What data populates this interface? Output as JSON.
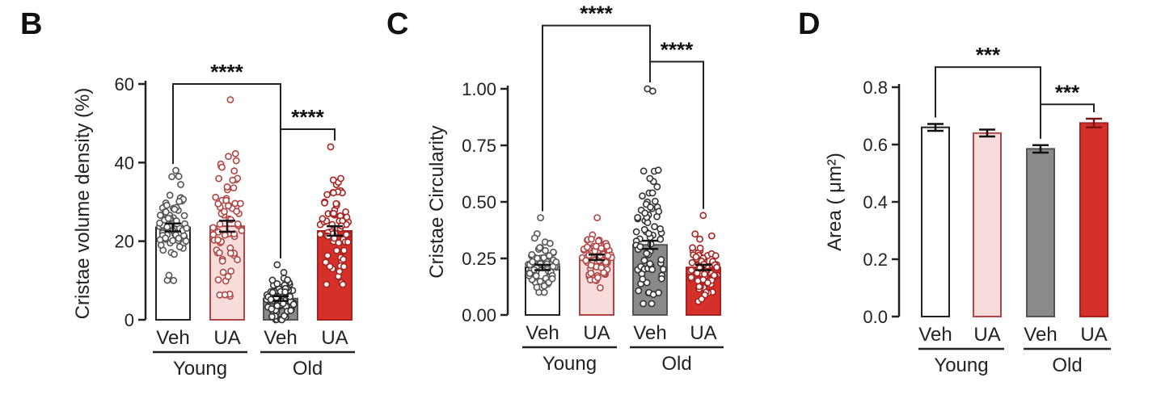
{
  "colors": {
    "young_veh": "#ffffff",
    "young_ua": "#f8dcdc",
    "old_veh": "#8a8a8a",
    "old_ua": "#d6302b",
    "bar_edge_young_ua": "#b34545",
    "bar_edge_old_ua": "#a82220",
    "axis": "#222222"
  },
  "chart_data": [
    {
      "panel": "B",
      "type": "bar",
      "ylabel": "Cristae volume density (%)",
      "ylim": [
        0,
        60
      ],
      "yticks": [
        0,
        20,
        40,
        60
      ],
      "ytick_labels": [
        "0",
        "20",
        "40",
        "60"
      ],
      "categories": [
        "Veh",
        "UA",
        "Veh",
        "UA"
      ],
      "groups": [
        {
          "label": "Young",
          "members": [
            0,
            1
          ]
        },
        {
          "label": "Old",
          "members": [
            2,
            3
          ]
        }
      ],
      "values": [
        23.5,
        23.8,
        5.4,
        22.6
      ],
      "errors": [
        1.0,
        1.4,
        0.6,
        1.2
      ],
      "scatter_points": true,
      "point_spread": [
        [
          10,
          38
        ],
        [
          6,
          56
        ],
        [
          0,
          14
        ],
        [
          9,
          44
        ]
      ],
      "significance": [
        {
          "from": 0,
          "to": 2,
          "label": "****",
          "level": 60
        },
        {
          "from": 2,
          "to": 3,
          "label": "****",
          "level": 48.5
        }
      ]
    },
    {
      "panel": "C",
      "type": "bar",
      "ylabel": "Cristae Circularity",
      "ylim": [
        0,
        1.0
      ],
      "yticks": [
        0,
        0.25,
        0.5,
        0.75,
        1.0
      ],
      "ytick_labels": [
        "0.00",
        "0.25",
        "0.50",
        "0.75",
        "1.00"
      ],
      "categories": [
        "Veh",
        "UA",
        "Veh",
        "UA"
      ],
      "groups": [
        {
          "label": "Young",
          "members": [
            0,
            1
          ]
        },
        {
          "label": "Old",
          "members": [
            2,
            3
          ]
        }
      ],
      "values": [
        0.21,
        0.255,
        0.31,
        0.21
      ],
      "errors": [
        0.012,
        0.012,
        0.018,
        0.012
      ],
      "scatter_points": true,
      "point_spread": [
        [
          0.1,
          0.43
        ],
        [
          0.12,
          0.43
        ],
        [
          0.05,
          1.0
        ],
        [
          0.06,
          0.44
        ]
      ],
      "significance": [
        {
          "from": 0,
          "to": 2,
          "label": "****",
          "level": 1.28
        },
        {
          "from": 2,
          "to": 3,
          "label": "****",
          "level": 1.12
        }
      ]
    },
    {
      "panel": "D",
      "type": "bar",
      "ylabel": "Area ( μm²)",
      "ylim": [
        0,
        0.8
      ],
      "yticks": [
        0,
        0.2,
        0.4,
        0.6,
        0.8
      ],
      "ytick_labels": [
        "0.0",
        "0.2",
        "0.4",
        "0.6",
        "0.8"
      ],
      "categories": [
        "Veh",
        "UA",
        "Veh",
        "UA"
      ],
      "groups": [
        {
          "label": "Young",
          "members": [
            0,
            1
          ]
        },
        {
          "label": "Old",
          "members": [
            2,
            3
          ]
        }
      ],
      "values": [
        0.66,
        0.64,
        0.585,
        0.675
      ],
      "errors": [
        0.012,
        0.012,
        0.013,
        0.015
      ],
      "scatter_points": false,
      "significance": [
        {
          "from": 0,
          "to": 2,
          "label": "***",
          "level": 0.87
        },
        {
          "from": 2,
          "to": 3,
          "label": "***",
          "level": 0.74
        }
      ]
    }
  ]
}
